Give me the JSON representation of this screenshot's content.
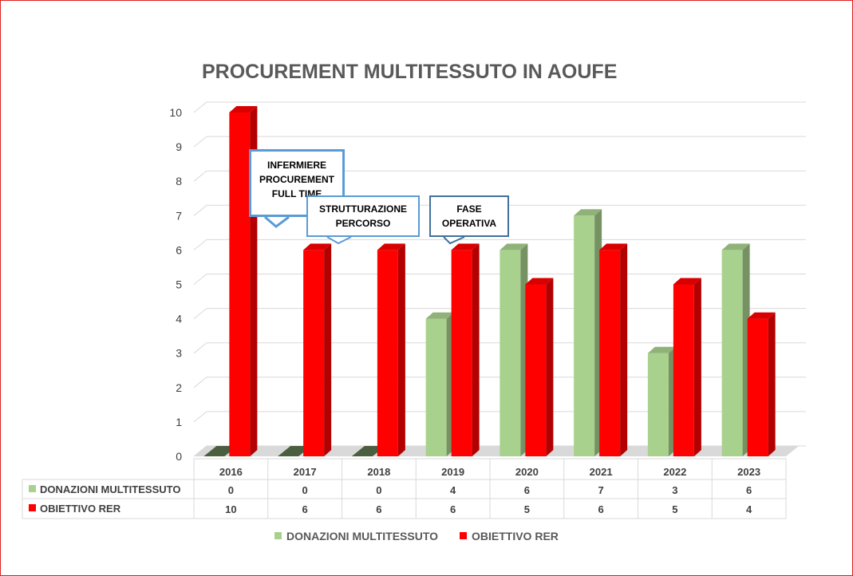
{
  "title": "PROCUREMENT MULTITESSUTO IN AOUFE",
  "colors": {
    "donazioni": "#a9d18e",
    "obiettivo": "#ff0000",
    "border": "#e01f1f"
  },
  "callouts": [
    {
      "text": "INFERMIERE\nPROCUREMENT\nFULL TIME",
      "color": "#5b9bd5"
    },
    {
      "text": "STRUTTURAZIONE\nPERCORSO",
      "color": "#5b9bd5"
    },
    {
      "text": "FASE\nOPERATIVA",
      "color": "#41719c"
    }
  ],
  "chart_data": {
    "type": "bar",
    "title": "PROCUREMENT MULTITESSUTO IN AOUFE",
    "categories": [
      "2016",
      "2017",
      "2018",
      "2019",
      "2020",
      "2021",
      "2022",
      "2023"
    ],
    "series": [
      {
        "name": "DONAZIONI MULTITESSUTO",
        "values": [
          0,
          0,
          0,
          4,
          6,
          7,
          3,
          6
        ]
      },
      {
        "name": "OBIETTIVO RER",
        "values": [
          10,
          6,
          6,
          6,
          5,
          6,
          5,
          4
        ]
      }
    ],
    "ylim": [
      0,
      10
    ],
    "yticks": [
      0,
      1,
      2,
      3,
      4,
      5,
      6,
      7,
      8,
      9,
      10
    ],
    "grid": true,
    "legend": "bottom",
    "data_table": true
  }
}
